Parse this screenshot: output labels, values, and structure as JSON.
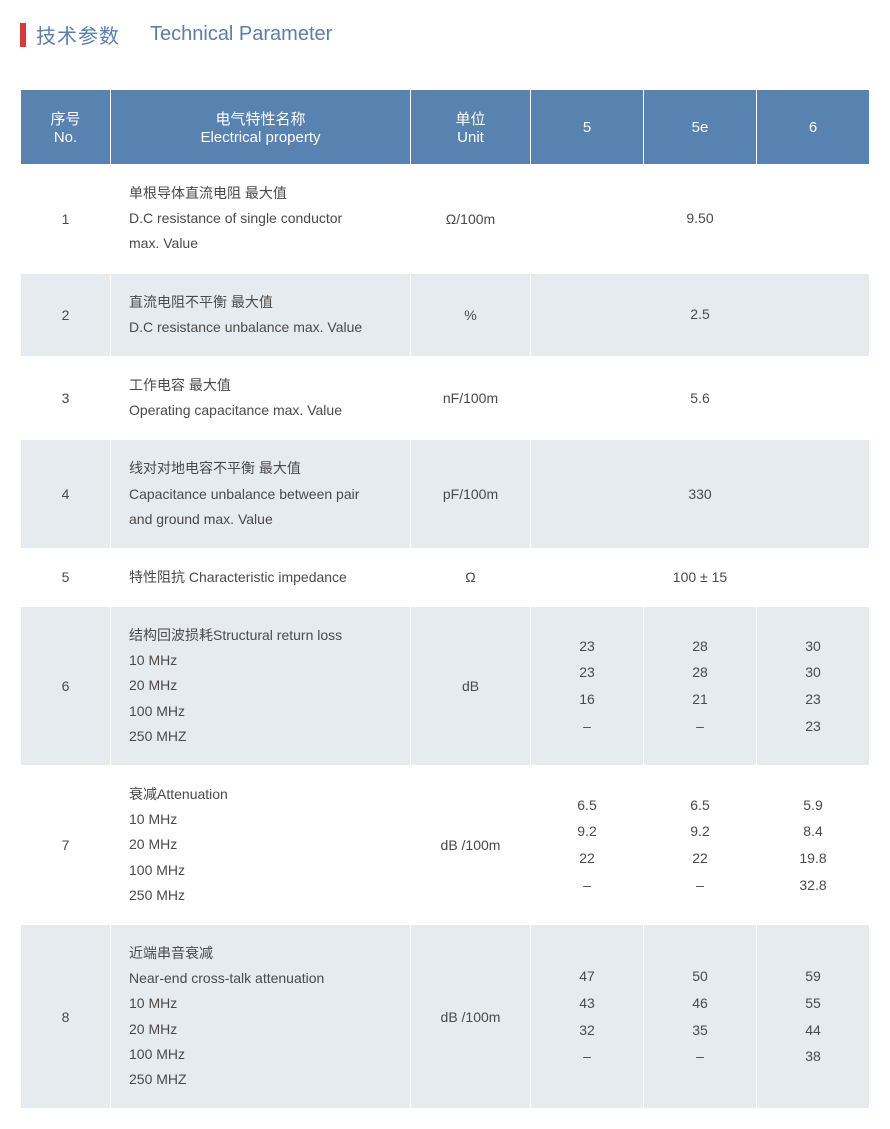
{
  "title": {
    "cn": "技术参数",
    "en": "Technical Parameter"
  },
  "colors": {
    "header_bg": "#5882b0",
    "row_alt_bg": "#e6ebf0",
    "border": "#ffffff",
    "accent_bar": "#d73a3a",
    "title_text": "#5a7eb0",
    "body_text": "#4a4a4a"
  },
  "columns": {
    "no": {
      "cn": "序号",
      "en": "No."
    },
    "prop": {
      "cn": "电气特性名称",
      "en": "Electrical property"
    },
    "unit": {
      "cn": "单位",
      "en": "Unit"
    },
    "c5": "5",
    "c5e": "5e",
    "c6": "6"
  },
  "rows": [
    {
      "no": "1",
      "prop": "单根导体直流电阻 最大值\nD.C resistance of single conductor\nmax. Value",
      "unit": "Ω/100m",
      "merged": "9.50"
    },
    {
      "no": "2",
      "prop": "直流电阻不平衡 最大值\nD.C resistance unbalance  max. Value",
      "unit": "%",
      "merged": "2.5"
    },
    {
      "no": "3",
      "prop": "工作电容 最大值\nOperating capacitance  max. Value",
      "unit": "nF/100m",
      "merged": "5.6"
    },
    {
      "no": "4",
      "prop": "线对对地电容不平衡  最大值\nCapacitance unbalance between pair\nand ground   max. Value",
      "unit": "pF/100m",
      "merged": "330"
    },
    {
      "no": "5",
      "prop": "特性阻抗 Characteristic impedance",
      "unit": "Ω",
      "merged": "100 ± 15"
    },
    {
      "no": "6",
      "prop": "结构回波损耗Structural return loss\n10 MHz\n20 MHz\n100 MHz\n250 MHZ",
      "unit": "dB",
      "c5": "23\n23\n16\n–",
      "c5e": "28\n28\n21\n–",
      "c6": "30\n30\n23\n23"
    },
    {
      "no": "7",
      "prop": "衰减Attenuation\n10 MHz\n20 MHz\n100 MHz\n250 MHz",
      "unit": "dB /100m",
      "c5": "6.5\n9.2\n22\n–",
      "c5e": "6.5\n9.2\n22\n–",
      "c6": "5.9\n8.4\n19.8\n32.8"
    },
    {
      "no": "8",
      "prop": "近端串音衰减\nNear-end cross-talk attenuation\n10 MHz\n20 MHz\n100 MHz\n250 MHZ",
      "unit": "dB /100m",
      "c5": "47\n43\n32\n–",
      "c5e": "50\n46\n35\n–",
      "c6": "59\n55\n44\n38"
    }
  ]
}
